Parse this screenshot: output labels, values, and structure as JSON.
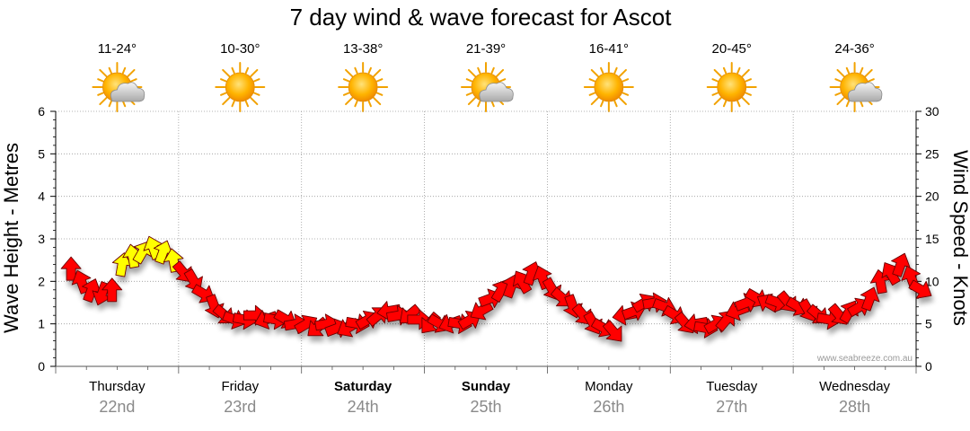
{
  "chart_data": {
    "type": "line",
    "title": "7 day wind & wave forecast for Ascot",
    "ylabel_left": "Wave Height - Metres",
    "ylabel_right": "Wind Speed - Knots",
    "ylim_left": [
      0,
      6
    ],
    "ylim_right": [
      0,
      30
    ],
    "yticks_left": [
      "0",
      "1",
      "2",
      "3",
      "4",
      "5",
      "6"
    ],
    "yticks_right": [
      "0",
      "5",
      "10",
      "15",
      "20",
      "25",
      "30"
    ],
    "grid": true,
    "watermark": "www.seabreeze.com.au",
    "days": [
      {
        "name": "Thursday",
        "date": "22nd",
        "temp": "11-24°",
        "icon": "sun-cloud-icon",
        "bold": false
      },
      {
        "name": "Friday",
        "date": "23rd",
        "temp": "10-30°",
        "icon": "sun-icon",
        "bold": false
      },
      {
        "name": "Saturday",
        "date": "24th",
        "temp": "13-38°",
        "icon": "sun-icon",
        "bold": true
      },
      {
        "name": "Sunday",
        "date": "25th",
        "temp": "21-39°",
        "icon": "sun-cloud-icon",
        "bold": true
      },
      {
        "name": "Monday",
        "date": "26th",
        "temp": "16-41°",
        "icon": "sun-icon",
        "bold": false
      },
      {
        "name": "Tuesday",
        "date": "27th",
        "temp": "20-45°",
        "icon": "sun-icon",
        "bold": false
      },
      {
        "name": "Wednesday",
        "date": "28th",
        "temp": "24-36°",
        "icon": "sun-cloud-icon",
        "bold": false
      }
    ],
    "series": [
      {
        "unit": "knots",
        "x_hours": [
          0,
          2,
          4,
          6,
          8,
          10,
          12,
          14,
          16,
          18,
          20,
          22,
          24,
          26,
          28,
          30,
          32,
          34,
          36,
          38,
          40,
          42,
          44,
          46,
          48,
          50,
          52,
          54,
          56,
          58,
          60,
          62,
          64,
          66,
          68,
          70,
          72,
          74,
          76,
          78,
          80,
          82,
          84,
          86,
          88,
          90,
          92,
          94,
          96,
          98,
          100,
          102,
          104,
          106,
          108,
          110,
          112,
          114,
          116,
          118,
          120,
          122,
          124,
          126,
          128,
          130,
          132,
          134,
          136,
          138,
          140,
          142,
          144,
          146,
          148,
          150,
          152,
          154,
          156,
          158,
          160,
          162,
          164,
          166
        ],
        "values": [
          11.5,
          10,
          9,
          8.5,
          9,
          12,
          13,
          13.5,
          14,
          13.5,
          12.5,
          11,
          10,
          8.5,
          7,
          6,
          5.5,
          5.5,
          6,
          5.5,
          5.5,
          5.5,
          5,
          5,
          4.5,
          5,
          4.5,
          4.5,
          5,
          5.5,
          6,
          6.5,
          6,
          6,
          5.5,
          5,
          5,
          5,
          5,
          5.5,
          6.5,
          8,
          9,
          9.5,
          10,
          11,
          10.5,
          9,
          8,
          7,
          6,
          5,
          4.5,
          4,
          6,
          6.5,
          7.5,
          7.5,
          7,
          6,
          5,
          5,
          4.5,
          5,
          5.5,
          6.5,
          7.5,
          8,
          7.5,
          7.5,
          7.5,
          7,
          6.5,
          6,
          5.5,
          6,
          6.5,
          7,
          8,
          10,
          11,
          12,
          10.5,
          9
        ],
        "colors": [
          "#ff0000",
          "#ff0000",
          "#ff0000",
          "#ff0000",
          "#ff0000",
          "#ffff00",
          "#ffff00",
          "#ffff00",
          "#ffff00",
          "#ffff00",
          "#ffff00",
          "#ff0000",
          "#ff0000",
          "#ff0000",
          "#ff0000",
          "#ff0000",
          "#ff0000",
          "#ff0000",
          "#ff0000",
          "#ff0000",
          "#ff0000",
          "#ff0000",
          "#ff0000",
          "#ff0000",
          "#ff0000",
          "#ff0000",
          "#ff0000",
          "#ff0000",
          "#ff0000",
          "#ff0000",
          "#ff0000",
          "#ff0000",
          "#ff0000",
          "#ff0000",
          "#ff0000",
          "#ff0000",
          "#ff0000",
          "#ff0000",
          "#ff0000",
          "#ff0000",
          "#ff0000",
          "#ff0000",
          "#ff0000",
          "#ff0000",
          "#ff0000",
          "#ff0000",
          "#ff0000",
          "#ff0000",
          "#ff0000",
          "#ff0000",
          "#ff0000",
          "#ff0000",
          "#ff0000",
          "#ff0000",
          "#ff0000",
          "#ff0000",
          "#ff0000",
          "#ff0000",
          "#ff0000",
          "#ff0000",
          "#ff0000",
          "#ff0000",
          "#ff0000",
          "#ff0000",
          "#ff0000",
          "#ff0000",
          "#ff0000",
          "#ff0000",
          "#ff0000",
          "#ff0000",
          "#ff0000",
          "#ff0000",
          "#ff0000",
          "#ff0000",
          "#ff0000",
          "#ff0000",
          "#ff0000",
          "#ff0000",
          "#ff0000",
          "#ff0000",
          "#ff0000",
          "#ff0000",
          "#ff0000",
          "#ff0000"
        ],
        "direction_deg": [
          0,
          340,
          20,
          200,
          0,
          10,
          350,
          30,
          340,
          20,
          350,
          140,
          150,
          120,
          160,
          130,
          110,
          100,
          90,
          250,
          100,
          120,
          80,
          60,
          230,
          80,
          70,
          240,
          100,
          60,
          50,
          260,
          80,
          230,
          90,
          220,
          120,
          250,
          100,
          60,
          240,
          70,
          30,
          20,
          330,
          20,
          340,
          150,
          130,
          160,
          140,
          150,
          120,
          140,
          260,
          70,
          60,
          80,
          110,
          120,
          140,
          260,
          100,
          60,
          40,
          250,
          70,
          120,
          300,
          110,
          140,
          120,
          150,
          130,
          100,
          140,
          30,
          60,
          20,
          350,
          330,
          20,
          340,
          120
        ]
      }
    ]
  },
  "colors": {
    "strong_wind": "#ff0000",
    "moderate_wind": "#ffff00",
    "grid": "#9a9a9a",
    "axis": "#000000",
    "date_label": "#8a8a8a"
  }
}
